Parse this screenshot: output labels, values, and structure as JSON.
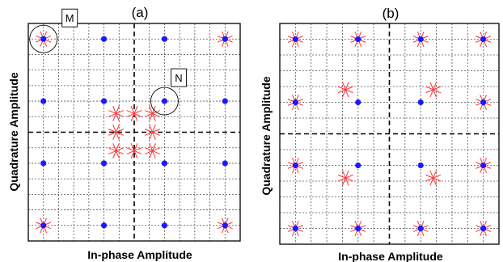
{
  "panels": [
    {
      "title": "(a)",
      "xlabel": "In-phase Amplitude",
      "ylabel": "Quadrature Amplitude",
      "annotations": [
        {
          "label": "M",
          "marks_point": [
            -3,
            3
          ]
        },
        {
          "label": "N",
          "marks_point": [
            1,
            1
          ]
        }
      ]
    },
    {
      "title": "(b)",
      "xlabel": "In-phase Amplitude",
      "ylabel": "Quadrature Amplitude",
      "annotations": []
    }
  ],
  "chart_data": [
    {
      "type": "scatter",
      "title": "(a)",
      "xlabel": "In-phase Amplitude",
      "ylabel": "Quadrature Amplitude",
      "xlim": [
        -3.5,
        3.5
      ],
      "ylim": [
        -3.5,
        3.5
      ],
      "grid": true,
      "series": [
        {
          "marker": "dot",
          "color": "#1a1aff",
          "points": [
            [
              -3,
              3
            ],
            [
              -1,
              3
            ],
            [
              1,
              3
            ],
            [
              3,
              3
            ],
            [
              -3,
              1
            ],
            [
              -1,
              1
            ],
            [
              1,
              1
            ],
            [
              3,
              1
            ],
            [
              -3,
              -1
            ],
            [
              -1,
              -1
            ],
            [
              1,
              -1
            ],
            [
              3,
              -1
            ],
            [
              -3,
              -3
            ],
            [
              -1,
              -3
            ],
            [
              1,
              -3
            ],
            [
              3,
              -3
            ]
          ]
        },
        {
          "marker": "star",
          "color": "#ff3b3b",
          "points": [
            [
              -3,
              3
            ],
            [
              3,
              3
            ],
            [
              -3,
              -3
            ],
            [
              3,
              -3
            ],
            [
              -0.6,
              0.6
            ],
            [
              0,
              0.6
            ],
            [
              0.6,
              0.6
            ],
            [
              -0.6,
              0
            ],
            [
              0.6,
              0
            ],
            [
              -0.6,
              -0.6
            ],
            [
              0,
              -0.6
            ],
            [
              0.6,
              -0.6
            ]
          ]
        }
      ]
    },
    {
      "type": "scatter",
      "title": "(b)",
      "xlabel": "In-phase Amplitude",
      "ylabel": "Quadrature Amplitude",
      "xlim": [
        -3.5,
        3.5
      ],
      "ylim": [
        -3.5,
        3.5
      ],
      "grid": true,
      "series": [
        {
          "marker": "dot",
          "color": "#1a1aff",
          "points": [
            [
              -3,
              3
            ],
            [
              -1,
              3
            ],
            [
              1,
              3
            ],
            [
              3,
              3
            ],
            [
              -3,
              1
            ],
            [
              -1,
              1
            ],
            [
              1,
              1
            ],
            [
              3,
              1
            ],
            [
              -3,
              -1
            ],
            [
              -1,
              -1
            ],
            [
              1,
              -1
            ],
            [
              3,
              -1
            ],
            [
              -3,
              -3
            ],
            [
              -1,
              -3
            ],
            [
              1,
              -3
            ],
            [
              3,
              -3
            ]
          ]
        },
        {
          "marker": "star",
          "color": "#ff3b3b",
          "points": [
            [
              -3,
              3
            ],
            [
              -1,
              3
            ],
            [
              1,
              3
            ],
            [
              3,
              3
            ],
            [
              -3,
              1
            ],
            [
              3,
              1
            ],
            [
              -3,
              -1
            ],
            [
              3,
              -1
            ],
            [
              -3,
              -3
            ],
            [
              -1,
              -3
            ],
            [
              1,
              -3
            ],
            [
              3,
              -3
            ],
            [
              -1.4,
              1.4
            ],
            [
              1.4,
              1.4
            ],
            [
              -1.4,
              -1.4
            ],
            [
              1.4,
              -1.4
            ]
          ]
        }
      ]
    }
  ]
}
